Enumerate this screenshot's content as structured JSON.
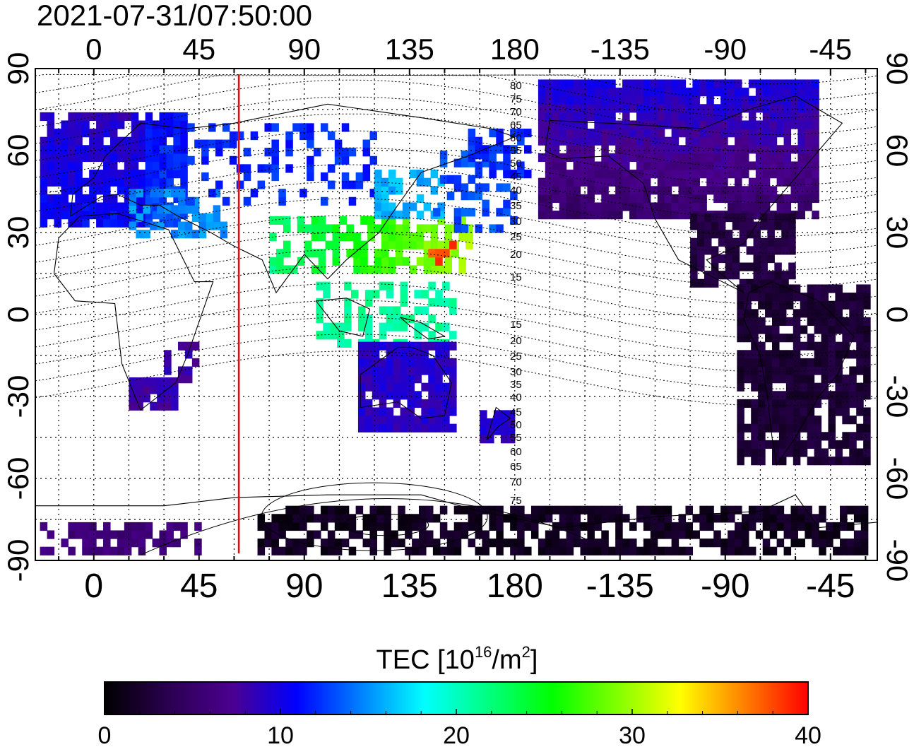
{
  "timestamp": "2021-07-31/07:50:00",
  "map": {
    "lon_ticks_top": [
      "0",
      "45",
      "90",
      "135",
      "180",
      "-135",
      "-90",
      "-45"
    ],
    "lon_ticks_bottom": [
      "0",
      "45",
      "90",
      "135",
      "180",
      "-135",
      "-90",
      "-45"
    ],
    "lat_ticks_left": [
      "90",
      "60",
      "30",
      "0",
      "-30",
      "-60",
      "-90"
    ],
    "lat_ticks_right": [
      "90",
      "60",
      "30",
      "0",
      "-30",
      "-60",
      "-90"
    ],
    "lon_range": [
      -25,
      335
    ],
    "lat_range": [
      -90,
      90
    ],
    "grid": "dotted",
    "terminator_longitude": 62,
    "terminator_color": "#ff0000",
    "contour_labels_north": [
      "80",
      "75",
      "70",
      "65",
      "60",
      "55",
      "50",
      "45",
      "40",
      "35",
      "30",
      "25",
      "20",
      "15"
    ],
    "contour_labels_south": [
      "15",
      "20",
      "25",
      "30",
      "35",
      "40",
      "45",
      "50",
      "55",
      "60",
      "65",
      "70",
      "75"
    ]
  },
  "colorbar": {
    "label": "TEC",
    "unit_base": "[10",
    "unit_exp": "16",
    "unit_mid": "/m",
    "unit_exp2": "2",
    "unit_end": "]",
    "range": [
      0,
      40
    ],
    "ticks": [
      "0",
      "10",
      "20",
      "30",
      "40"
    ],
    "colors": [
      "#000000",
      "#2a0050",
      "#4b0090",
      "#0000ff",
      "#0080ff",
      "#00ffff",
      "#00ff80",
      "#00ff00",
      "#80ff00",
      "#ffff00",
      "#ff8000",
      "#ff0000"
    ]
  }
}
